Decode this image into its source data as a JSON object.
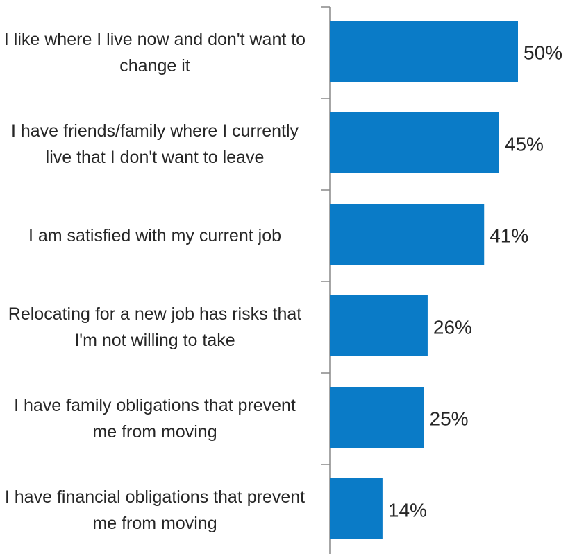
{
  "chart_data": {
    "type": "hbar",
    "categories": [
      "I like where I live now and don't want to change it",
      "I have friends/family where I currently live that I don't want to leave",
      "I am satisfied with my current job",
      "Relocating for a new job has risks that I'm not willing to take",
      "I have family obligations that prevent me from moving",
      "I have financial obligations that prevent me from moving"
    ],
    "values": [
      50,
      45,
      41,
      26,
      25,
      14
    ],
    "value_labels": [
      "50%",
      "45%",
      "41%",
      "26%",
      "25%",
      "14%"
    ],
    "color": "#0a7bc7"
  }
}
